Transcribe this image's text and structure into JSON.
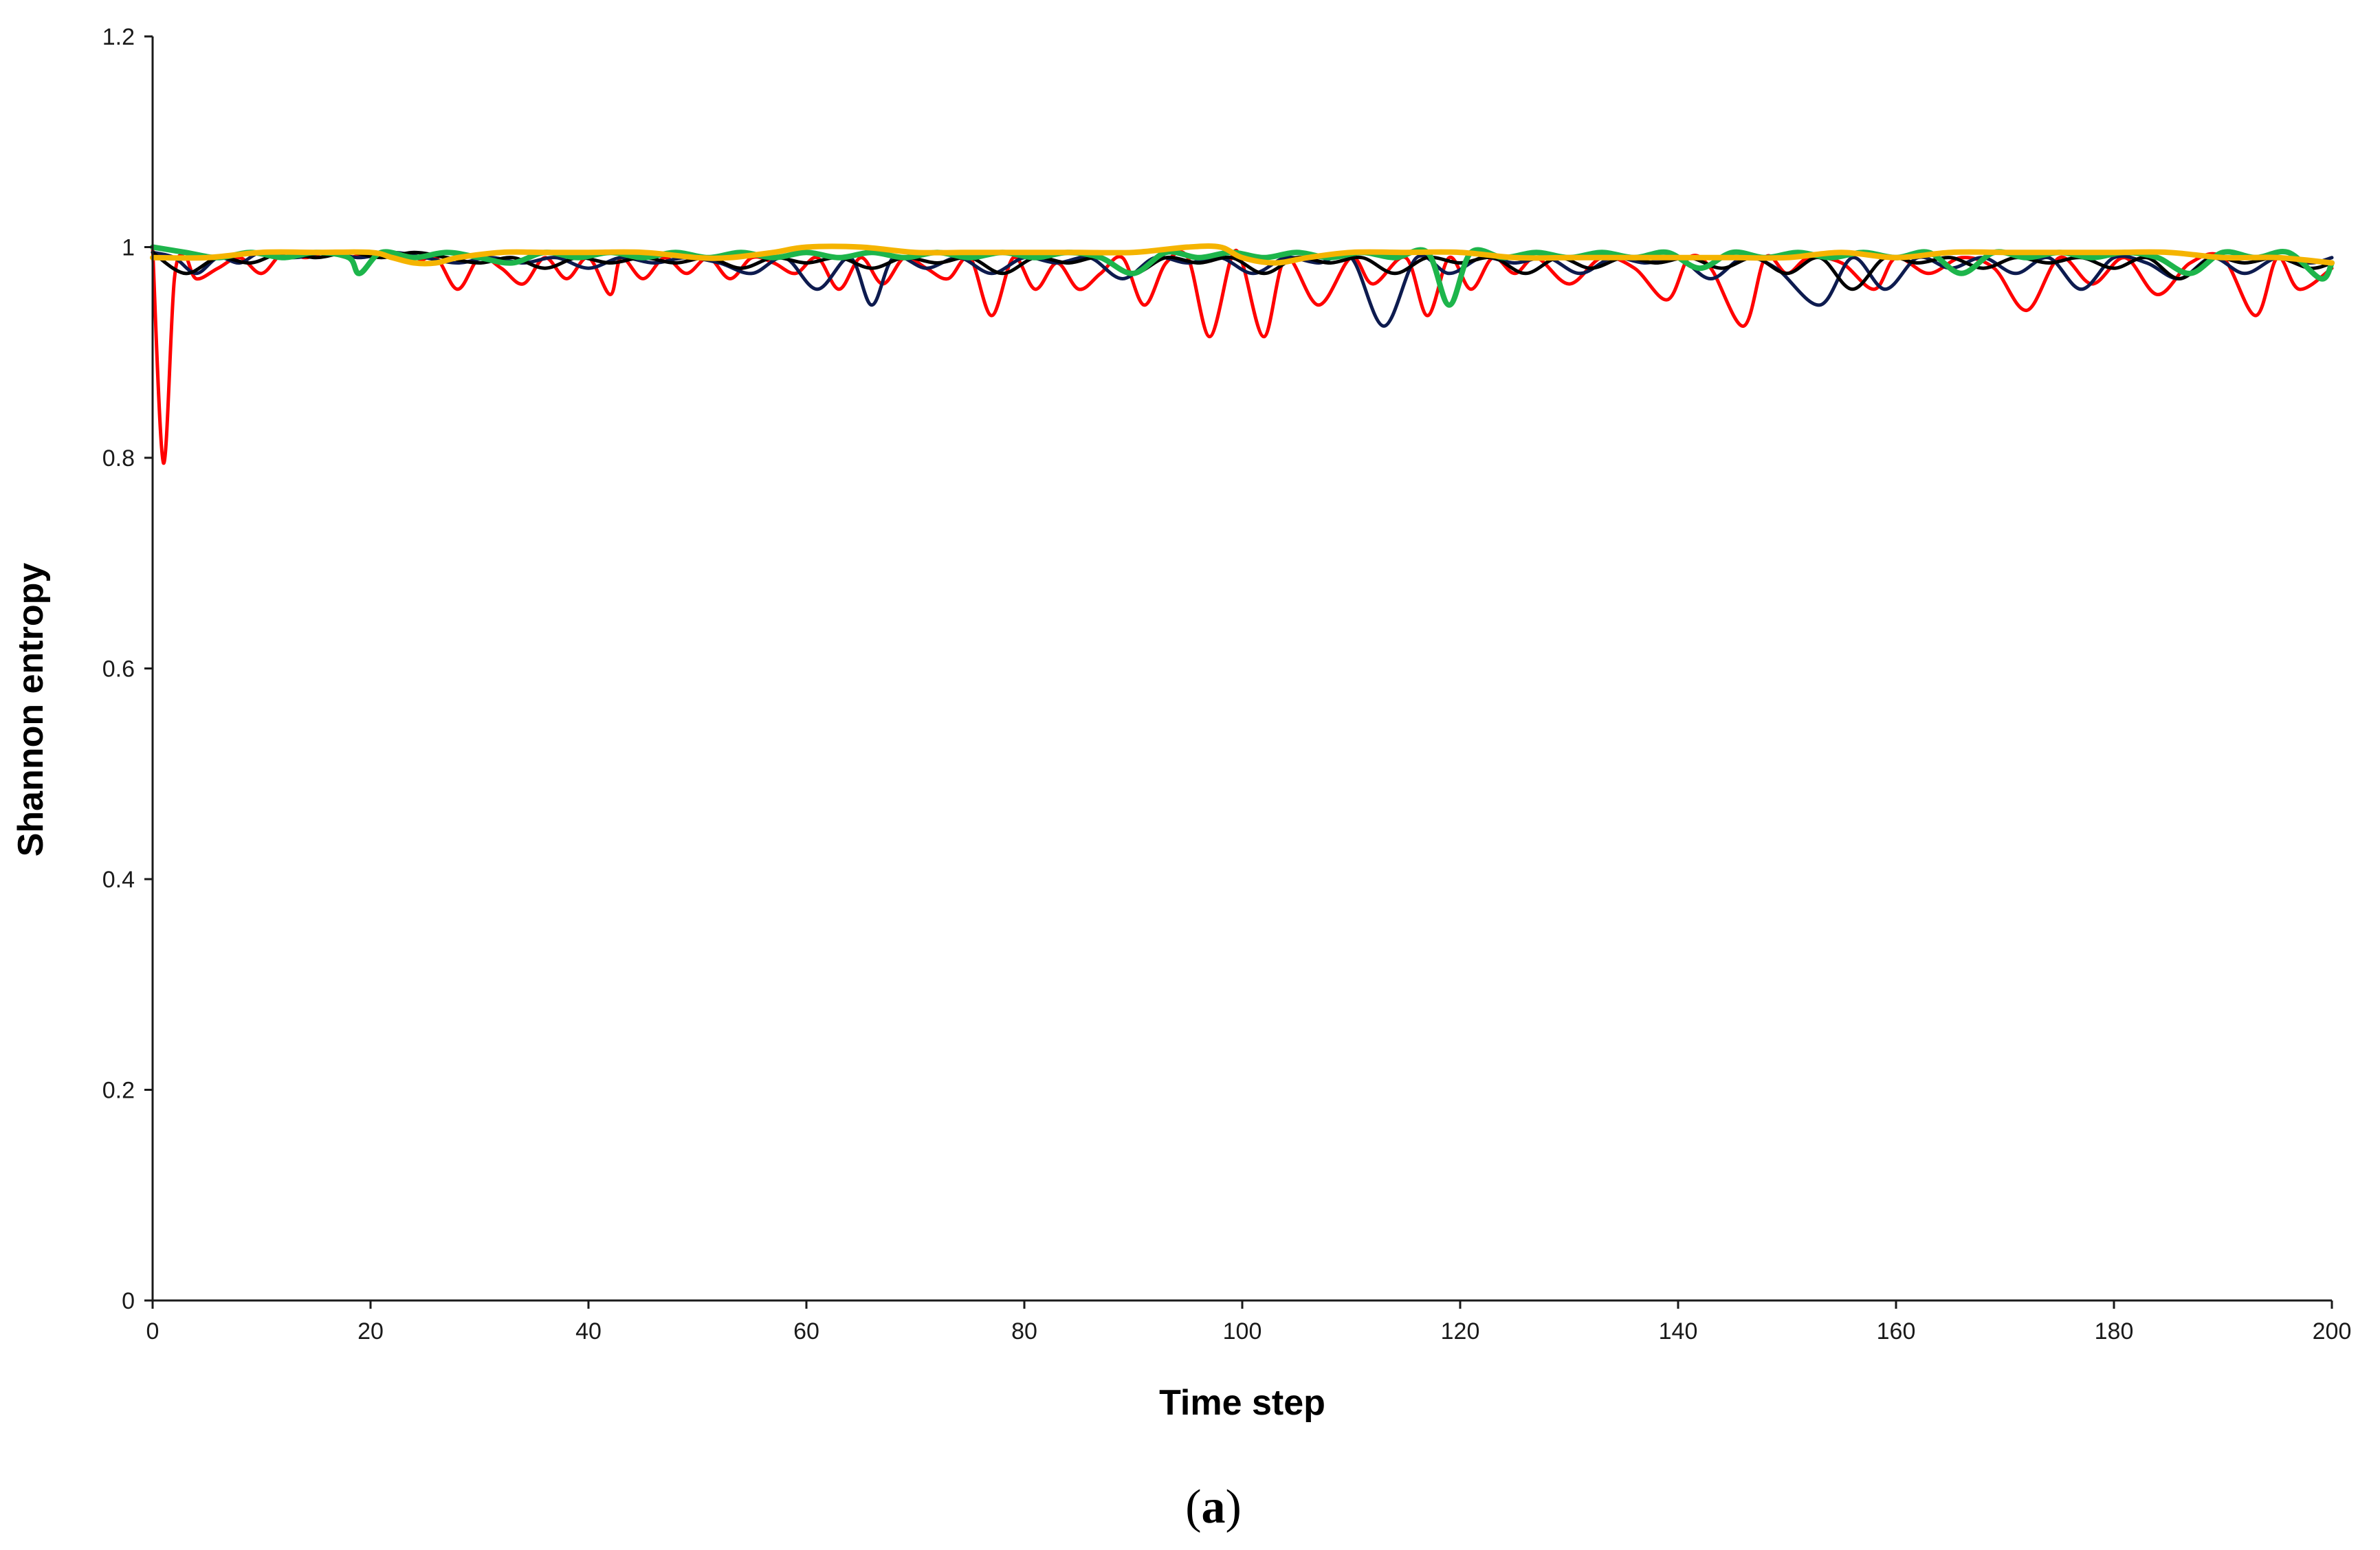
{
  "chart_data": {
    "type": "line",
    "title": "",
    "xlabel": "Time step",
    "ylabel": "Shannon entropy",
    "panel_label": "(a)",
    "xlim": [
      0,
      200
    ],
    "ylim": [
      0,
      1.2
    ],
    "xticks": [
      0,
      20,
      40,
      60,
      80,
      100,
      120,
      140,
      160,
      180,
      200
    ],
    "xtick_labels": [
      "0",
      "20",
      "40",
      "60",
      "80",
      "100",
      "120",
      "140",
      "160",
      "180",
      "200"
    ],
    "yticks": [
      0,
      0.2,
      0.4,
      0.6,
      0.8,
      1,
      1.2
    ],
    "ytick_labels": [
      "0",
      "0.2",
      "0.4",
      "0.6",
      "0.8",
      "1",
      "1.2"
    ],
    "grid": false,
    "legend": "none",
    "series": [
      {
        "color": "#ff0000",
        "x": [
          0,
          1,
          2,
          3,
          4,
          6,
          8,
          10,
          12,
          14,
          16,
          18,
          20,
          22,
          24,
          26,
          28,
          30,
          32,
          34,
          36,
          38,
          40,
          42,
          43,
          45,
          47,
          49,
          51,
          53,
          55,
          57,
          59,
          61,
          63,
          65,
          67,
          69,
          71,
          73,
          75,
          77,
          79,
          81,
          83,
          85,
          87,
          89,
          91,
          93,
          95,
          97,
          99,
          100,
          102,
          104,
          107,
          110,
          112,
          115,
          117,
          119,
          121,
          123,
          125,
          127,
          130,
          133,
          136,
          139,
          141,
          143,
          146,
          148,
          150,
          152,
          155,
          158,
          160,
          163,
          166,
          169,
          172,
          175,
          178,
          181,
          184,
          187,
          190,
          193,
          195,
          197,
          200
        ],
        "y": [
          1.0,
          0.795,
          0.97,
          0.99,
          0.97,
          0.98,
          0.99,
          0.975,
          0.995,
          0.99,
          0.995,
          0.99,
          0.995,
          0.99,
          0.985,
          0.99,
          0.96,
          0.99,
          0.98,
          0.965,
          0.99,
          0.97,
          0.99,
          0.955,
          0.99,
          0.97,
          0.99,
          0.975,
          0.99,
          0.97,
          0.99,
          0.985,
          0.975,
          0.99,
          0.96,
          0.99,
          0.965,
          0.99,
          0.98,
          0.97,
          0.99,
          0.935,
          0.99,
          0.96,
          0.985,
          0.96,
          0.975,
          0.99,
          0.945,
          0.985,
          0.99,
          0.915,
          0.99,
          0.985,
          0.915,
          0.99,
          0.945,
          0.99,
          0.965,
          0.99,
          0.935,
          0.99,
          0.96,
          0.99,
          0.975,
          0.99,
          0.965,
          0.99,
          0.98,
          0.95,
          0.99,
          0.98,
          0.925,
          0.99,
          0.975,
          0.99,
          0.985,
          0.96,
          0.99,
          0.975,
          0.99,
          0.98,
          0.94,
          0.99,
          0.965,
          0.99,
          0.955,
          0.985,
          0.99,
          0.935,
          0.99,
          0.96,
          0.98
        ]
      },
      {
        "color": "#0d1b4f",
        "x": [
          0,
          2,
          4,
          6,
          8,
          10,
          13,
          16,
          19,
          22,
          25,
          28,
          31,
          34,
          37,
          40,
          43,
          46,
          49,
          52,
          55,
          58,
          61,
          64,
          66,
          68,
          71,
          74,
          77,
          80,
          83,
          86,
          89,
          92,
          95,
          98,
          101,
          104,
          107,
          110,
          113,
          116,
          119,
          122,
          125,
          128,
          131,
          134,
          137,
          140,
          143,
          146,
          149,
          153,
          156,
          159,
          162,
          165,
          168,
          171,
          174,
          177,
          180,
          183,
          186,
          189,
          192,
          195,
          198,
          200
        ],
        "y": [
          0.995,
          0.99,
          0.975,
          0.99,
          0.985,
          0.995,
          0.99,
          0.995,
          0.99,
          0.995,
          0.99,
          0.985,
          0.99,
          0.985,
          0.99,
          0.98,
          0.99,
          0.985,
          0.99,
          0.985,
          0.975,
          0.99,
          0.96,
          0.99,
          0.945,
          0.99,
          0.98,
          0.99,
          0.975,
          0.99,
          0.985,
          0.99,
          0.97,
          0.99,
          0.985,
          0.99,
          0.975,
          0.99,
          0.985,
          0.99,
          0.925,
          0.99,
          0.975,
          0.99,
          0.985,
          0.99,
          0.975,
          0.99,
          0.985,
          0.99,
          0.97,
          0.99,
          0.98,
          0.945,
          0.99,
          0.96,
          0.99,
          0.98,
          0.99,
          0.975,
          0.99,
          0.96,
          0.99,
          0.985,
          0.97,
          0.99,
          0.975,
          0.99,
          0.985,
          0.99
        ]
      },
      {
        "color": "#000000",
        "x": [
          0,
          3,
          6,
          9,
          12,
          15,
          18,
          21,
          24,
          27,
          30,
          33,
          36,
          39,
          42,
          45,
          48,
          51,
          54,
          57,
          60,
          63,
          66,
          69,
          72,
          75,
          78,
          81,
          84,
          87,
          90,
          93,
          96,
          99,
          102,
          105,
          108,
          111,
          114,
          117,
          120,
          123,
          126,
          129,
          132,
          135,
          138,
          141,
          144,
          147,
          150,
          153,
          156,
          159,
          162,
          165,
          168,
          171,
          174,
          177,
          180,
          183,
          186,
          189,
          192,
          195,
          198,
          200
        ],
        "y": [
          0.995,
          0.975,
          0.99,
          0.985,
          0.995,
          0.99,
          0.995,
          0.99,
          0.995,
          0.99,
          0.985,
          0.99,
          0.98,
          0.99,
          0.985,
          0.99,
          0.985,
          0.99,
          0.98,
          0.99,
          0.985,
          0.99,
          0.98,
          0.99,
          0.985,
          0.99,
          0.975,
          0.99,
          0.985,
          0.99,
          0.975,
          0.99,
          0.985,
          0.99,
          0.975,
          0.99,
          0.985,
          0.99,
          0.975,
          0.99,
          0.985,
          0.99,
          0.975,
          0.99,
          0.98,
          0.99,
          0.985,
          0.99,
          0.98,
          0.99,
          0.975,
          0.99,
          0.96,
          0.99,
          0.985,
          0.99,
          0.98,
          0.99,
          0.985,
          0.99,
          0.98,
          0.99,
          0.97,
          0.99,
          0.985,
          0.99,
          0.98,
          0.985
        ]
      },
      {
        "color": "#1db54b",
        "x": [
          0,
          3,
          6,
          9,
          12,
          15,
          18,
          19,
          21,
          24,
          27,
          30,
          33,
          36,
          39,
          42,
          45,
          48,
          51,
          54,
          57,
          60,
          63,
          66,
          69,
          72,
          75,
          78,
          81,
          84,
          87,
          90,
          93,
          96,
          99,
          102,
          105,
          108,
          111,
          114,
          117,
          119,
          121,
          124,
          127,
          130,
          133,
          136,
          139,
          142,
          145,
          148,
          151,
          154,
          157,
          160,
          163,
          166,
          169,
          172,
          175,
          178,
          181,
          184,
          187,
          190,
          193,
          196,
          199,
          200
        ],
        "y": [
          1.0,
          0.995,
          0.99,
          0.995,
          0.99,
          0.995,
          0.99,
          0.975,
          0.995,
          0.99,
          0.995,
          0.99,
          0.985,
          0.995,
          0.99,
          0.995,
          0.99,
          0.995,
          0.99,
          0.995,
          0.99,
          0.995,
          0.99,
          0.995,
          0.99,
          0.995,
          0.99,
          0.995,
          0.99,
          0.995,
          0.99,
          0.975,
          0.995,
          0.99,
          0.995,
          0.99,
          0.995,
          0.99,
          0.995,
          0.99,
          0.995,
          0.945,
          0.995,
          0.99,
          0.995,
          0.99,
          0.995,
          0.99,
          0.995,
          0.98,
          0.995,
          0.99,
          0.995,
          0.99,
          0.995,
          0.99,
          0.995,
          0.975,
          0.995,
          0.99,
          0.995,
          0.99,
          0.995,
          0.99,
          0.975,
          0.995,
          0.99,
          0.995,
          0.97,
          0.985
        ]
      },
      {
        "color": "#f5b400",
        "x": [
          0,
          5,
          10,
          15,
          20,
          22,
          24,
          26,
          28,
          32,
          36,
          40,
          45,
          50,
          53,
          57,
          60,
          65,
          70,
          75,
          80,
          85,
          90,
          95,
          98,
          100,
          103,
          106,
          110,
          115,
          120,
          125,
          130,
          135,
          140,
          145,
          150,
          155,
          160,
          165,
          170,
          175,
          180,
          185,
          190,
          195,
          200
        ],
        "y": [
          0.99,
          0.99,
          0.995,
          0.995,
          0.995,
          0.99,
          0.985,
          0.985,
          0.99,
          0.995,
          0.995,
          0.995,
          0.995,
          0.99,
          0.99,
          0.995,
          1.0,
          1.0,
          0.995,
          0.995,
          0.995,
          0.995,
          0.995,
          1.0,
          1.0,
          0.99,
          0.985,
          0.99,
          0.995,
          0.995,
          0.995,
          0.99,
          0.99,
          0.99,
          0.99,
          0.99,
          0.99,
          0.995,
          0.99,
          0.995,
          0.995,
          0.995,
          0.995,
          0.995,
          0.99,
          0.99,
          0.985
        ]
      }
    ]
  }
}
